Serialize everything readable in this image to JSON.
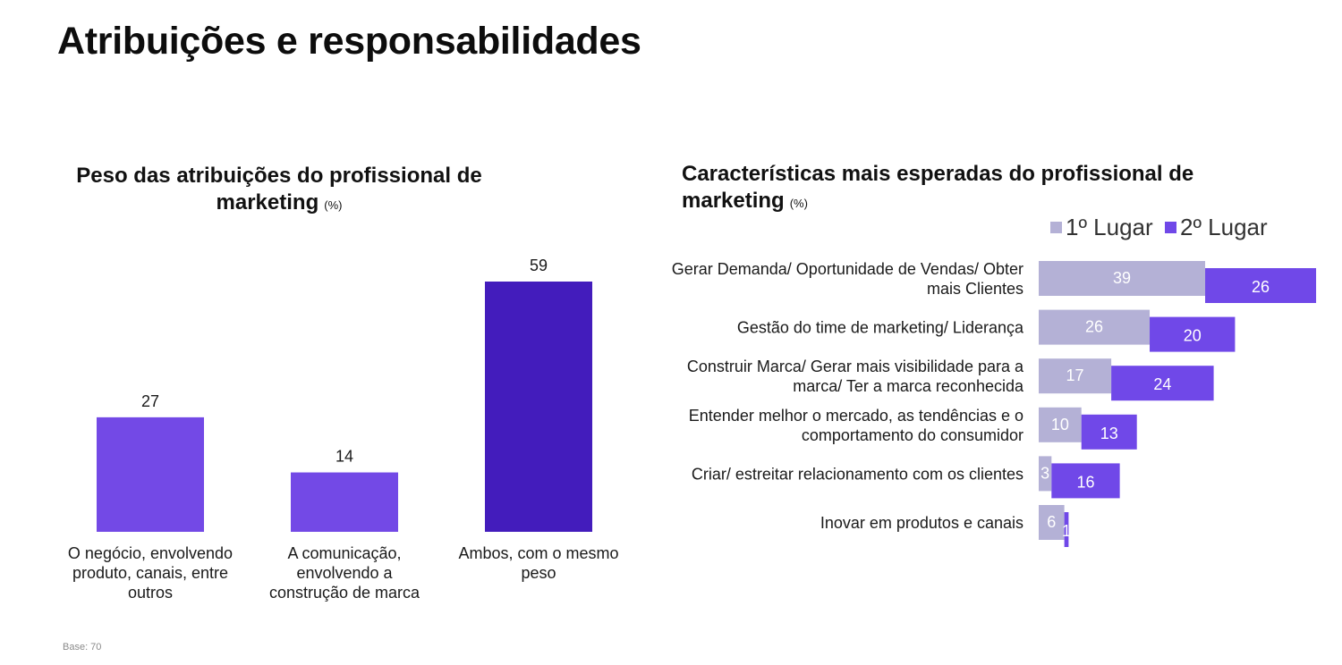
{
  "page": {
    "title": "Atribuições e responsabilidades",
    "footnote": "Base: 70"
  },
  "colors": {
    "bar_primary": "#7349e6",
    "bar_dark": "#431cbc",
    "first_place": "#b4b1d6",
    "second_place": "#7048e8"
  },
  "chart_data": [
    {
      "type": "bar",
      "title": "Peso das atribuições do profissional de marketing",
      "unit": "(%)",
      "categories": [
        [
          "O negócio, envolvendo",
          "produto, canais, entre",
          "outros"
        ],
        [
          "A comunicação,",
          "envolvendo a",
          "construção de marca"
        ],
        [
          "Ambos, com o mesmo",
          "peso"
        ]
      ],
      "values": [
        27,
        14,
        59
      ],
      "ylim": [
        0,
        59
      ]
    },
    {
      "type": "bar",
      "orientation": "horizontal",
      "title": "Características mais esperadas do profissional de marketing",
      "unit": "(%)",
      "legend_position": "top-right",
      "categories": [
        [
          "Gerar Demanda/ Oportunidade de Vendas/ Obter",
          "mais Clientes"
        ],
        [
          "Gestão do time de marketing/ Liderança"
        ],
        [
          "Construir Marca/ Gerar mais visibilidade para a",
          "marca/ Ter a marca reconhecida"
        ],
        [
          "Entender melhor o mercado, as tendências e o",
          "comportamento do consumidor"
        ],
        [
          "Criar/ estreitar relacionamento com os clientes"
        ],
        [
          "Inovar em produtos e canais"
        ]
      ],
      "series": [
        {
          "name": "1º Lugar",
          "values": [
            39,
            26,
            17,
            10,
            3,
            6
          ]
        },
        {
          "name": "2º Lugar",
          "values": [
            26,
            20,
            24,
            13,
            16,
            1
          ]
        }
      ]
    }
  ]
}
